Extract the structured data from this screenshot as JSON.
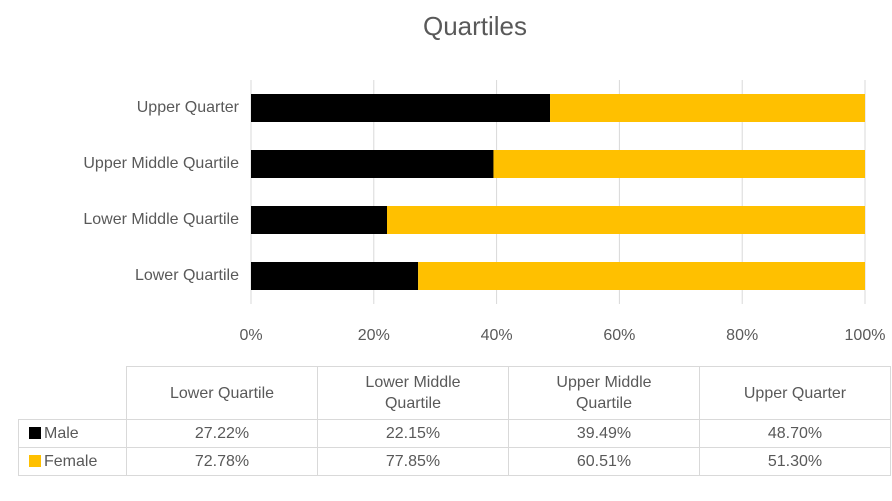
{
  "chart_data": {
    "type": "stacked_bar_horizontal",
    "title": "Quartiles",
    "categories": [
      "Lower Quartile",
      "Lower Middle Quartile",
      "Upper Middle Quartile",
      "Upper Quarter"
    ],
    "series": [
      {
        "name": "Male",
        "color": "#000000",
        "values": [
          27.22,
          22.15,
          39.49,
          48.7
        ],
        "value_labels": [
          "27.22%",
          "22.15%",
          "39.49%",
          "48.70%"
        ]
      },
      {
        "name": "Female",
        "color": "#ffc000",
        "values": [
          72.78,
          77.85,
          60.51,
          51.3
        ],
        "value_labels": [
          "72.78%",
          "77.85%",
          "60.51%",
          "51.30%"
        ]
      }
    ],
    "xlim": [
      0,
      100
    ],
    "xticks": [
      {
        "value": 0,
        "label": "0%"
      },
      {
        "value": 20,
        "label": "20%"
      },
      {
        "value": 40,
        "label": "40%"
      },
      {
        "value": 60,
        "label": "60%"
      },
      {
        "value": 80,
        "label": "80%"
      },
      {
        "value": 100,
        "label": "100%"
      }
    ],
    "grid": true
  }
}
